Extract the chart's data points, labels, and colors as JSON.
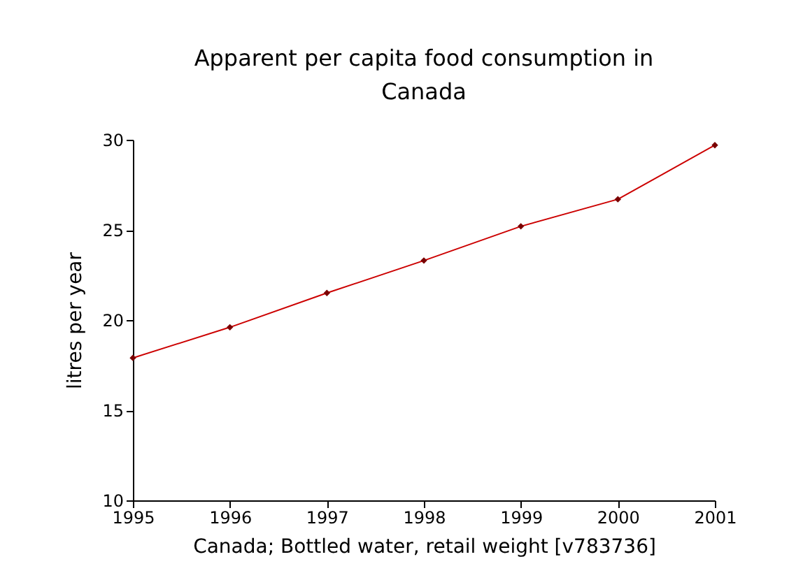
{
  "chart_data": {
    "type": "line",
    "title": "Apparent per capita food consumption in Canada",
    "xlabel": "Canada; Bottled water, retail weight [v783736]",
    "ylabel": "litres per year",
    "x": [
      1995,
      1996,
      1997,
      1998,
      1999,
      2000,
      2001
    ],
    "series": [
      {
        "color": "#cc0000",
        "values": [
          17.9,
          19.6,
          21.5,
          23.3,
          25.2,
          26.7,
          29.7
        ]
      }
    ],
    "xlim": [
      1995,
      2001
    ],
    "xticks": [
      1995,
      1996,
      1997,
      1998,
      1999,
      2000,
      2001
    ],
    "ylim": [
      10,
      30
    ],
    "yticks": [
      10,
      15,
      20,
      25,
      30
    ],
    "grid": false,
    "legend": false,
    "marker": "diamond",
    "line_style": "solid"
  }
}
